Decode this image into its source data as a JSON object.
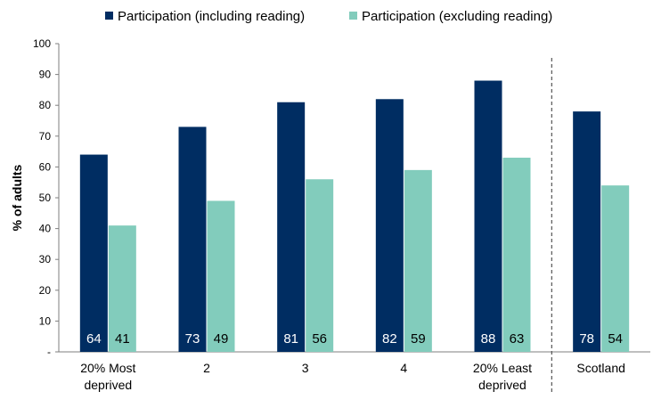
{
  "chart_data": {
    "type": "bar",
    "title": "",
    "xlabel": "",
    "ylabel": "% of adults",
    "ylim": [
      0,
      100
    ],
    "yticks": [
      0,
      10,
      20,
      30,
      40,
      50,
      60,
      70,
      80,
      90,
      100
    ],
    "ytick_labels": [
      "-",
      "10",
      "20",
      "30",
      "40",
      "50",
      "60",
      "70",
      "80",
      "90",
      "100"
    ],
    "categories": [
      [
        "20% Most",
        "deprived"
      ],
      [
        "2"
      ],
      [
        "3"
      ],
      [
        "4"
      ],
      [
        "20% Least",
        "deprived"
      ],
      [
        "Scotland"
      ]
    ],
    "series": [
      {
        "name": "Participation (including reading)",
        "color": "#002D62",
        "label_color": "#ffffff",
        "values": [
          64,
          73,
          81,
          82,
          88,
          78
        ],
        "labels": [
          "64",
          "73",
          "81",
          "82",
          "88",
          "78"
        ]
      },
      {
        "name": "Participation (excluding reading)",
        "color": "#82CCBC",
        "label_color": "#000000",
        "values": [
          41,
          49,
          56,
          59,
          63,
          54
        ],
        "labels": [
          "41",
          "49",
          "56",
          "59",
          "63",
          "54"
        ]
      }
    ],
    "separator_before_category": 5,
    "legend": "top",
    "grid": false
  }
}
